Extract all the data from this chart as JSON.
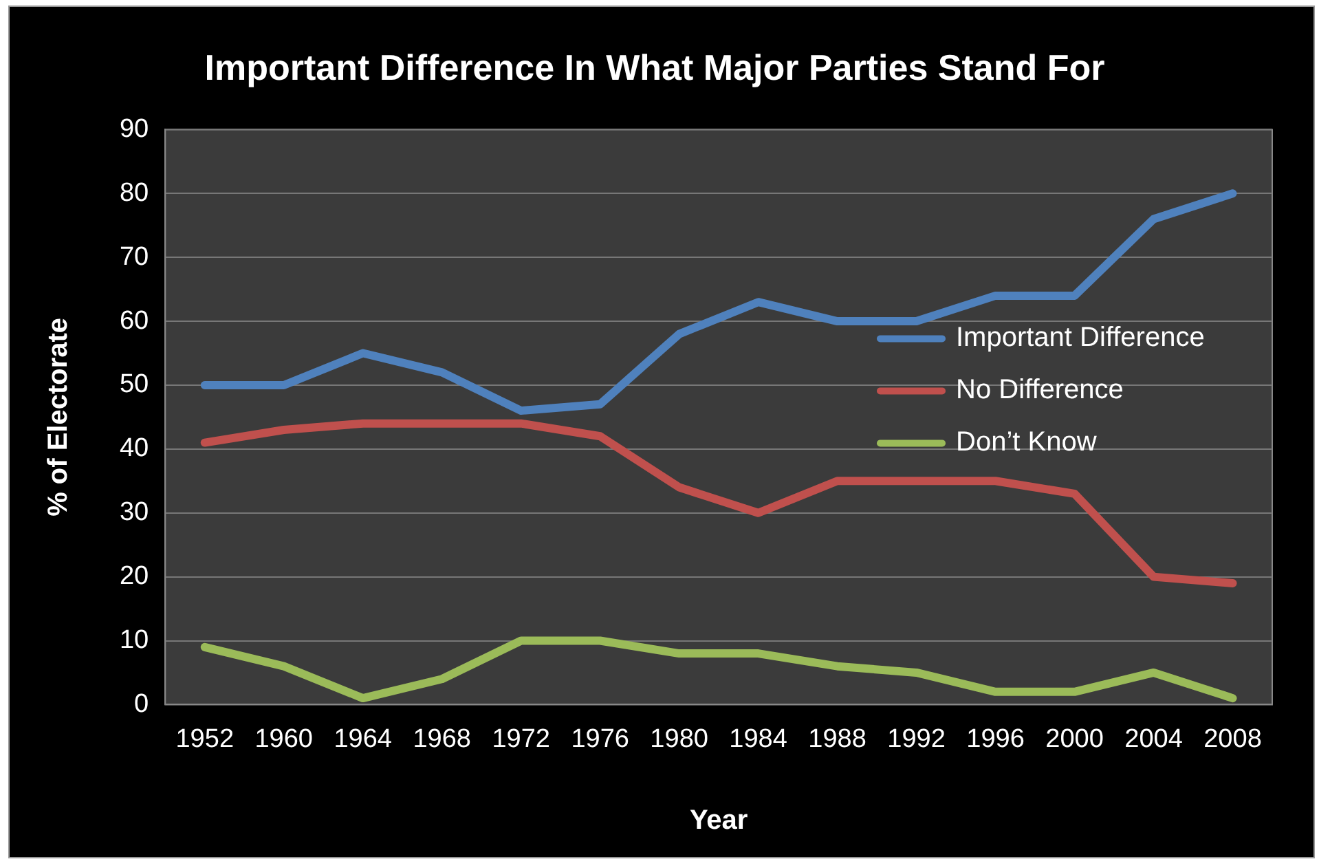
{
  "chart_data": {
    "type": "line",
    "title": "Important Difference In What Major Parties Stand For",
    "xlabel": "Year",
    "ylabel": "% of Electorate",
    "categories": [
      "1952",
      "1960",
      "1964",
      "1968",
      "1972",
      "1976",
      "1980",
      "1984",
      "1988",
      "1992",
      "1996",
      "2000",
      "2004",
      "2008"
    ],
    "series": [
      {
        "name": "Important Difference",
        "color": "#4f81bd",
        "values": [
          50,
          50,
          55,
          52,
          46,
          47,
          58,
          63,
          60,
          60,
          64,
          64,
          76,
          80
        ]
      },
      {
        "name": "No Difference",
        "color": "#c0504d",
        "values": [
          41,
          43,
          44,
          44,
          44,
          42,
          34,
          30,
          35,
          35,
          35,
          33,
          20,
          19
        ]
      },
      {
        "name": "Don’t Know",
        "color": "#9bbb59",
        "values": [
          9,
          6,
          1,
          4,
          10,
          10,
          8,
          8,
          6,
          5,
          2,
          2,
          5,
          1
        ]
      }
    ],
    "ylim": [
      0,
      90
    ],
    "yticks": [
      0,
      10,
      20,
      30,
      40,
      50,
      60,
      70,
      80,
      90
    ],
    "grid": "y",
    "legend": "right",
    "marker": "none",
    "line_style": "solid"
  }
}
